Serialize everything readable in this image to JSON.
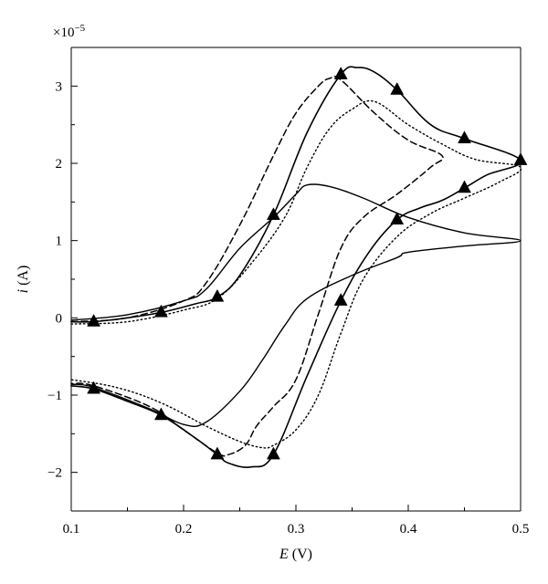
{
  "chart_data": {
    "type": "line",
    "title": "",
    "xlabel": "E (V)",
    "ylabel": "i (A)",
    "xlabel_var": "E",
    "xlabel_unit": "(V)",
    "ylabel_var": "i",
    "ylabel_unit": "(A)",
    "y_exponent_label": "×10",
    "y_exponent_power": "−5",
    "xlim": [
      0.1,
      0.5
    ],
    "ylim": [
      -2.5,
      3.5
    ],
    "ylim_units": "×10^-5 A",
    "x_ticks": [
      0.1,
      0.2,
      0.3,
      0.4,
      0.5
    ],
    "x_tick_labels": [
      "0.1",
      "0.2",
      "0.3",
      "0.4",
      "0.5"
    ],
    "y_ticks": [
      -2,
      -1,
      0,
      1,
      2,
      3
    ],
    "y_tick_labels": [
      "−2",
      "−1",
      "0",
      "1",
      "2",
      "3"
    ],
    "grid": false,
    "legend": "none",
    "series": [
      {
        "style": "solid-triangle-markers",
        "x": [
          0.1,
          0.12,
          0.15,
          0.18,
          0.21,
          0.23,
          0.25,
          0.28,
          0.31,
          0.34,
          0.355,
          0.37,
          0.39,
          0.42,
          0.45,
          0.5,
          0.47,
          0.45,
          0.43,
          0.41,
          0.39,
          0.365,
          0.34,
          0.31,
          0.28,
          0.26,
          0.24,
          0.23,
          0.21,
          0.18,
          0.15,
          0.12,
          0.1
        ],
        "y": [
          -0.05,
          -0.05,
          0.0,
          0.07,
          0.18,
          0.27,
          0.55,
          1.33,
          2.4,
          3.15,
          3.24,
          3.18,
          2.95,
          2.5,
          2.32,
          2.04,
          1.85,
          1.68,
          1.52,
          1.42,
          1.27,
          0.85,
          0.22,
          -0.75,
          -1.77,
          -1.93,
          -1.88,
          -1.77,
          -1.55,
          -1.26,
          -1.08,
          -0.92,
          -0.88
        ],
        "markers": [
          [
            0.12,
            -0.05
          ],
          [
            0.18,
            0.07
          ],
          [
            0.23,
            0.27
          ],
          [
            0.28,
            1.33
          ],
          [
            0.34,
            3.15
          ],
          [
            0.39,
            2.95
          ],
          [
            0.45,
            2.32
          ],
          [
            0.5,
            2.04
          ],
          [
            0.45,
            1.68
          ],
          [
            0.39,
            1.27
          ],
          [
            0.34,
            0.22
          ],
          [
            0.28,
            -1.77
          ],
          [
            0.23,
            -1.77
          ],
          [
            0.18,
            -1.26
          ],
          [
            0.12,
            -0.92
          ]
        ]
      },
      {
        "style": "dashed",
        "x": [
          0.1,
          0.15,
          0.2,
          0.22,
          0.25,
          0.28,
          0.3,
          0.32,
          0.33,
          0.34,
          0.37,
          0.4,
          0.43,
          0.42,
          0.39,
          0.36,
          0.34,
          0.32,
          0.3,
          0.28,
          0.265,
          0.255,
          0.24,
          0.23,
          0.2,
          0.17,
          0.12,
          0.1
        ],
        "y": [
          -0.05,
          0.0,
          0.22,
          0.45,
          1.2,
          2.1,
          2.65,
          3.0,
          3.1,
          3.08,
          2.65,
          2.3,
          2.1,
          1.95,
          1.6,
          1.3,
          0.9,
          0.05,
          -0.8,
          -1.15,
          -1.4,
          -1.65,
          -1.77,
          -1.75,
          -1.45,
          -1.15,
          -0.88,
          -0.85
        ]
      },
      {
        "style": "dotted",
        "x": [
          0.1,
          0.15,
          0.2,
          0.23,
          0.26,
          0.29,
          0.31,
          0.33,
          0.35,
          0.37,
          0.4,
          0.43,
          0.46,
          0.5,
          0.48,
          0.45,
          0.42,
          0.39,
          0.36,
          0.34,
          0.32,
          0.3,
          0.28,
          0.27,
          0.25,
          0.22,
          0.18,
          0.14,
          0.1
        ],
        "y": [
          -0.08,
          -0.05,
          0.1,
          0.25,
          0.7,
          1.3,
          1.95,
          2.45,
          2.7,
          2.8,
          2.5,
          2.25,
          2.05,
          1.95,
          1.75,
          1.55,
          1.35,
          1.05,
          0.5,
          -0.2,
          -1.0,
          -1.45,
          -1.65,
          -1.68,
          -1.6,
          -1.4,
          -1.1,
          -0.9,
          -0.8
        ]
      },
      {
        "style": "solid-thin",
        "x": [
          0.1,
          0.15,
          0.2,
          0.22,
          0.25,
          0.28,
          0.3,
          0.31,
          0.33,
          0.36,
          0.4,
          0.45,
          0.5,
          0.45,
          0.4,
          0.39,
          0.35,
          0.31,
          0.29,
          0.27,
          0.25,
          0.22,
          0.2,
          0.17,
          0.12,
          0.1
        ],
        "y": [
          -0.03,
          0.04,
          0.22,
          0.37,
          0.9,
          1.3,
          1.6,
          1.72,
          1.7,
          1.55,
          1.3,
          1.1,
          1.0,
          0.93,
          0.85,
          0.78,
          0.55,
          0.25,
          -0.1,
          -0.55,
          -0.95,
          -1.35,
          -1.38,
          -1.18,
          -0.9,
          -0.86
        ]
      }
    ]
  }
}
